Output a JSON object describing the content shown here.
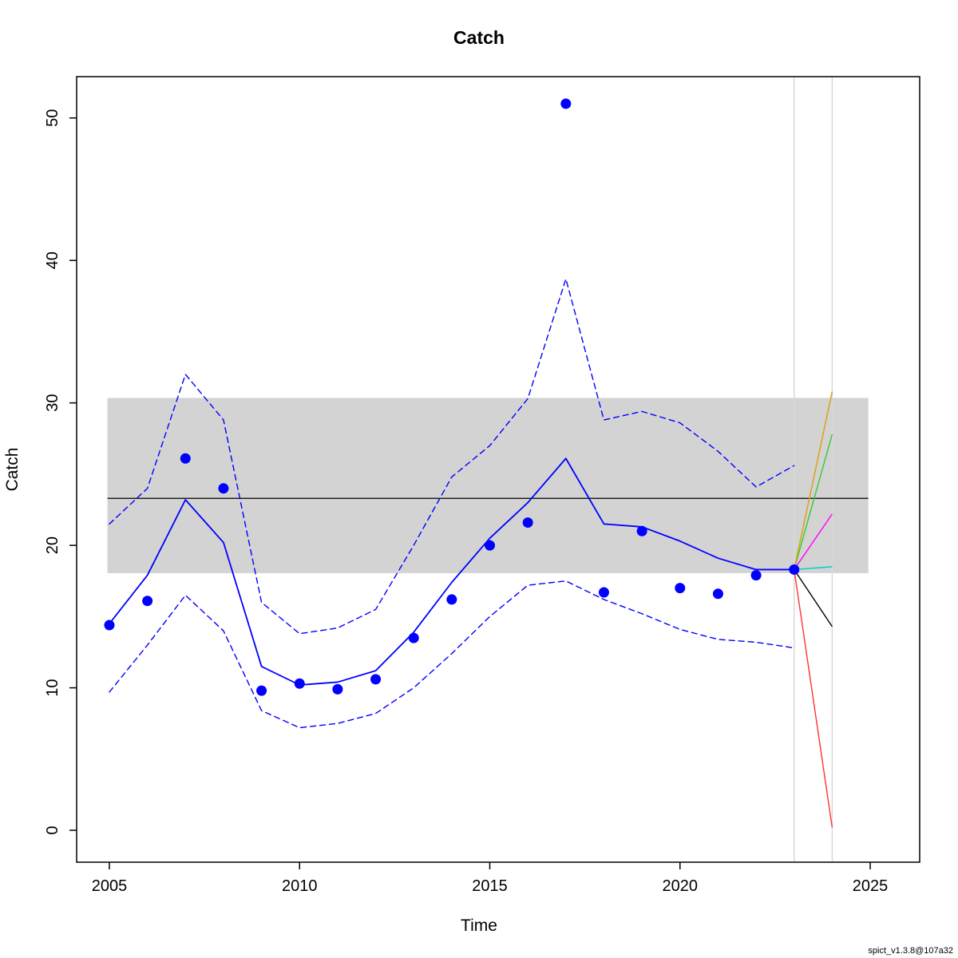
{
  "watermark": "spict_v1.3.8@107a32",
  "chart_data": {
    "type": "line",
    "title": "Catch",
    "xlabel": "Time",
    "ylabel": "Catch",
    "xlim": [
      2004.14,
      2026.3
    ],
    "ylim": [
      -2.24,
      52.9
    ],
    "x_ticks": [
      2005,
      2010,
      2015,
      2020,
      2025
    ],
    "y_ticks": [
      0,
      10,
      20,
      30,
      40,
      50
    ],
    "grid": false,
    "legend": "none",
    "confidence_band": {
      "xmin": 2004.95,
      "xmax": 2024.95,
      "ymin": 18.05,
      "ymax": 30.35,
      "color": "#d3d3d3"
    },
    "reference_line": {
      "xmin": 2004.95,
      "xmax": 2024.95,
      "y": 23.3,
      "color": "#000000",
      "width": 1.2
    },
    "vertical_lines": {
      "x": [
        2023,
        2024
      ],
      "color": "#d9d9d9",
      "width": 1.5
    },
    "x": [
      2005,
      2006,
      2007,
      2008,
      2009,
      2010,
      2011,
      2012,
      2013,
      2014,
      2015,
      2016,
      2017,
      2018,
      2019,
      2020,
      2021,
      2022,
      2023
    ],
    "series": [
      {
        "name": "ci-upper",
        "type": "line",
        "color": "#0000ff",
        "width": 1.4,
        "dash": "7 5",
        "values": [
          21.5,
          24.0,
          32.0,
          28.8,
          16.0,
          13.8,
          14.2,
          15.5,
          20.0,
          24.8,
          27.0,
          30.3,
          38.7,
          28.8,
          29.4,
          28.6,
          26.6,
          24.1,
          25.6
        ]
      },
      {
        "name": "ci-lower",
        "type": "line",
        "color": "#0000ff",
        "width": 1.4,
        "dash": "7 5",
        "values": [
          9.7,
          13.0,
          16.5,
          14.0,
          8.4,
          7.2,
          7.5,
          8.2,
          10.0,
          12.4,
          15.0,
          17.2,
          17.5,
          16.2,
          15.2,
          14.1,
          13.4,
          13.2,
          12.8
        ]
      },
      {
        "name": "estimated-catch",
        "type": "line",
        "color": "#0000ff",
        "width": 1.8,
        "dash": "",
        "values": [
          14.5,
          17.9,
          23.2,
          20.2,
          11.5,
          10.2,
          10.4,
          11.2,
          13.9,
          17.4,
          20.5,
          23.0,
          26.1,
          21.5,
          21.3,
          20.3,
          19.1,
          18.3,
          18.3
        ]
      },
      {
        "name": "observed-catch",
        "type": "points",
        "color": "#0000ff",
        "r": 6.5,
        "values": [
          14.4,
          16.1,
          26.1,
          24.0,
          9.8,
          10.3,
          9.9,
          10.6,
          13.5,
          16.2,
          20.0,
          21.6,
          51.0,
          16.7,
          21.0,
          17.0,
          16.6,
          17.9,
          18.3
        ]
      }
    ],
    "forecasts": [
      {
        "name": "forecast-red",
        "color": "#ff3333",
        "x": [
          2023,
          2024
        ],
        "y": [
          18.3,
          0.2
        ],
        "width": 1.4
      },
      {
        "name": "forecast-black",
        "color": "#000000",
        "x": [
          2023,
          2024
        ],
        "y": [
          18.3,
          14.3
        ],
        "width": 1.4
      },
      {
        "name": "forecast-teal",
        "color": "#00cdcd",
        "x": [
          2023,
          2024
        ],
        "y": [
          18.3,
          18.5
        ],
        "width": 1.4
      },
      {
        "name": "forecast-magenta",
        "color": "#ff00ff",
        "x": [
          2023,
          2024
        ],
        "y": [
          18.3,
          22.2
        ],
        "width": 1.4
      },
      {
        "name": "forecast-green",
        "color": "#33cc33",
        "x": [
          2023,
          2024
        ],
        "y": [
          18.3,
          27.8
        ],
        "width": 1.4
      },
      {
        "name": "forecast-gold",
        "color": "#daa520",
        "x": [
          2023,
          2024
        ],
        "y": [
          18.3,
          30.8
        ],
        "width": 1.6
      }
    ]
  }
}
